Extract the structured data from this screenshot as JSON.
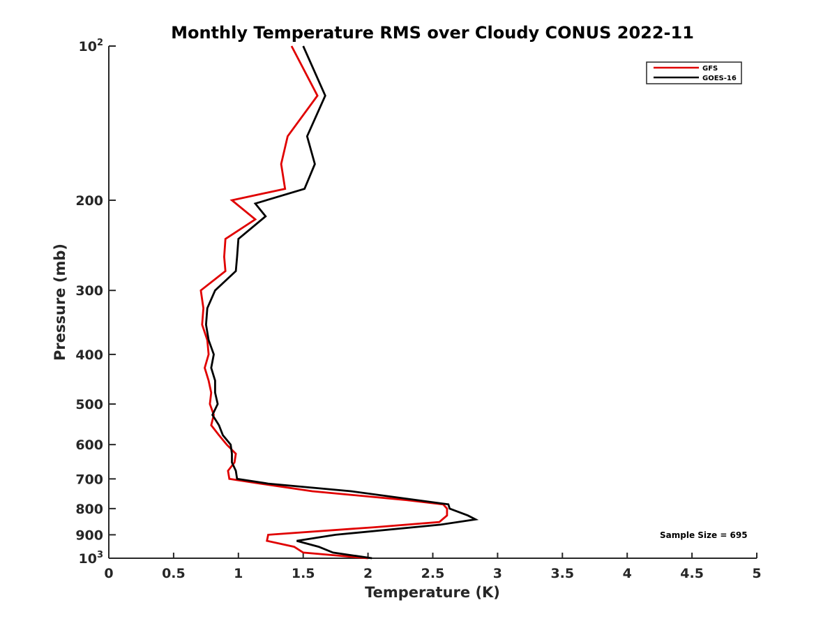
{
  "chart_data": {
    "type": "line",
    "title": "Monthly Temperature RMS over Cloudy CONUS  2022-11",
    "xlabel": "Temperature (K)",
    "ylabel": "Pressure (mb)",
    "xlim": [
      0,
      5
    ],
    "ylim": [
      100,
      1000
    ],
    "y_scale": "log",
    "y_reversed": true,
    "grid": false,
    "legend_position": "top-right",
    "x_ticks": [
      "0",
      "0.5",
      "1",
      "1.5",
      "2",
      "2.5",
      "3",
      "3.5",
      "4",
      "4.5",
      "5"
    ],
    "y_ticks": [
      {
        "value": 100,
        "base": "10",
        "exp": "2"
      },
      {
        "value": 200,
        "label": "200"
      },
      {
        "value": 300,
        "label": "300"
      },
      {
        "value": 400,
        "label": "400"
      },
      {
        "value": 500,
        "label": "500"
      },
      {
        "value": 600,
        "label": "600"
      },
      {
        "value": 700,
        "label": "700"
      },
      {
        "value": 800,
        "label": "800"
      },
      {
        "value": 900,
        "label": "900"
      },
      {
        "value": 1000,
        "base": "10",
        "exp": "3"
      }
    ],
    "annotation": "Sample Size = 695",
    "series": [
      {
        "name": "GFS",
        "color": "#e00000",
        "points": [
          [
            1.41,
            100
          ],
          [
            1.61,
            125
          ],
          [
            1.38,
            150
          ],
          [
            1.33,
            170
          ],
          [
            1.36,
            190
          ],
          [
            0.95,
            200
          ],
          [
            1.13,
            218
          ],
          [
            0.9,
            238
          ],
          [
            0.89,
            258
          ],
          [
            0.9,
            275
          ],
          [
            0.71,
            300
          ],
          [
            0.73,
            325
          ],
          [
            0.72,
            350
          ],
          [
            0.76,
            375
          ],
          [
            0.77,
            400
          ],
          [
            0.74,
            425
          ],
          [
            0.77,
            450
          ],
          [
            0.79,
            475
          ],
          [
            0.78,
            500
          ],
          [
            0.81,
            525
          ],
          [
            0.79,
            550
          ],
          [
            0.85,
            575
          ],
          [
            0.91,
            600
          ],
          [
            0.98,
            625
          ],
          [
            0.97,
            650
          ],
          [
            0.92,
            675
          ],
          [
            0.93,
            700
          ],
          [
            1.17,
            715
          ],
          [
            1.57,
            740
          ],
          [
            2.3,
            770
          ],
          [
            2.58,
            785
          ],
          [
            2.61,
            800
          ],
          [
            2.61,
            825
          ],
          [
            2.55,
            850
          ],
          [
            2.05,
            870
          ],
          [
            1.23,
            900
          ],
          [
            1.22,
            925
          ],
          [
            1.43,
            950
          ],
          [
            1.5,
            975
          ],
          [
            2.0,
            1000
          ]
        ]
      },
      {
        "name": "GOES-16",
        "color": "#000000",
        "points": [
          [
            1.5,
            100
          ],
          [
            1.67,
            125
          ],
          [
            1.53,
            150
          ],
          [
            1.59,
            170
          ],
          [
            1.51,
            190
          ],
          [
            1.13,
            203
          ],
          [
            1.21,
            215
          ],
          [
            1.0,
            238
          ],
          [
            0.99,
            258
          ],
          [
            0.98,
            275
          ],
          [
            0.82,
            300
          ],
          [
            0.76,
            325
          ],
          [
            0.75,
            350
          ],
          [
            0.77,
            375
          ],
          [
            0.81,
            400
          ],
          [
            0.79,
            425
          ],
          [
            0.82,
            450
          ],
          [
            0.82,
            475
          ],
          [
            0.84,
            500
          ],
          [
            0.8,
            525
          ],
          [
            0.85,
            550
          ],
          [
            0.88,
            575
          ],
          [
            0.94,
            600
          ],
          [
            0.95,
            625
          ],
          [
            0.95,
            650
          ],
          [
            0.98,
            675
          ],
          [
            0.99,
            700
          ],
          [
            1.23,
            715
          ],
          [
            1.87,
            740
          ],
          [
            2.62,
            785
          ],
          [
            2.63,
            800
          ],
          [
            2.77,
            825
          ],
          [
            2.83,
            840
          ],
          [
            2.56,
            860
          ],
          [
            1.75,
            900
          ],
          [
            1.45,
            925
          ],
          [
            1.62,
            950
          ],
          [
            1.73,
            975
          ],
          [
            2.03,
            1000
          ]
        ]
      }
    ]
  }
}
